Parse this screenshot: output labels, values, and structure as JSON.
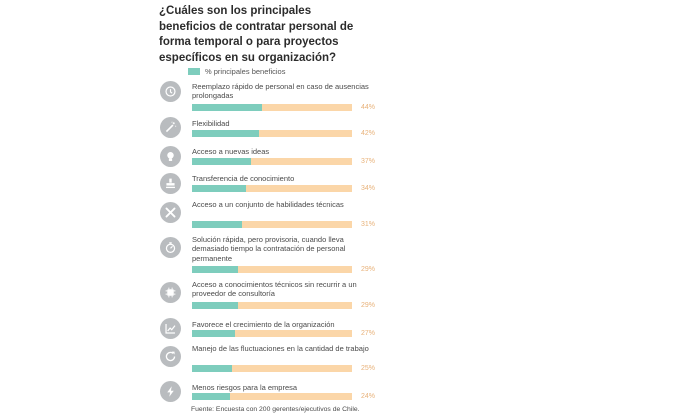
{
  "title": "¿Cuáles son los principales beneficios de contratar personal de forma temporal o para proyectos específicos en su organización?",
  "footnote": "Fuente: Encuesta con 200 gerentes/ejecutivos de Chile.",
  "colors": {
    "fill": "#7ecdbd",
    "track": "#fbd6a8",
    "icon_bg": "#b9bcbf",
    "percent_text": "#e8b27a"
  },
  "chart_data": {
    "type": "bar",
    "orientation": "horizontal",
    "legend": "% principales beneficios",
    "legend_position": "top-left",
    "xlim": [
      0,
      100
    ],
    "categories": [
      "Reemplazo rápido de personal en caso de ausencias prolongadas",
      "Flexibilidad",
      "Acceso a nuevas ideas",
      "Transferencia de conocimiento",
      "Acceso a un conjunto de habilidades técnicas",
      "Solución rápida, pero provisoria, cuando lleva demasiado tiempo la contratación de personal permanente",
      "Acceso a conocimientos técnicos sin recurrir a un proveedor de consultoría",
      "Favorece el crecimiento de la organización",
      "Manejo de las fluctuaciones en la cantidad de trabajo",
      "Menos riesgos para la empresa"
    ],
    "values": [
      44,
      42,
      37,
      34,
      31,
      29,
      29,
      27,
      25,
      24
    ],
    "value_labels": [
      "44%",
      "42%",
      "37%",
      "34%",
      "31%",
      "29%",
      "29%",
      "27%",
      "25%",
      "24%"
    ],
    "icons": [
      "clock-people-icon",
      "magic-wand-icon",
      "lightbulb-icon",
      "stamp-icon",
      "tools-icon",
      "stopwatch-icon",
      "chip-icon",
      "growth-chart-icon",
      "refresh-icon",
      "lightning-icon"
    ]
  }
}
